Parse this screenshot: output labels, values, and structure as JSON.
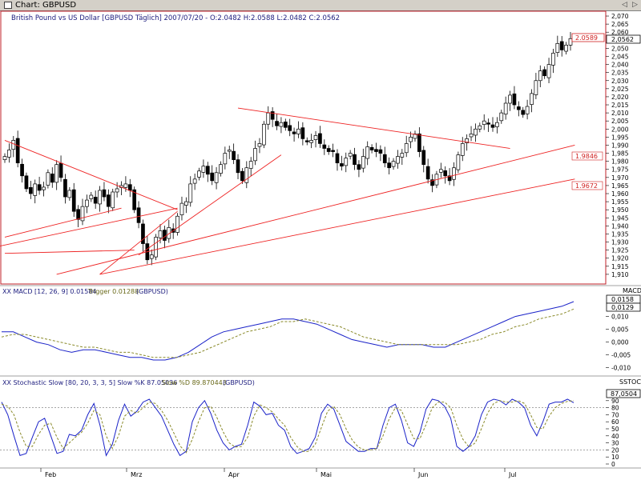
{
  "window": {
    "title": "Chart: GBPUSD",
    "btn_left": "◁",
    "btn_right": "▷"
  },
  "colors": {
    "price_panel_border": "#c0202a",
    "trendline": "#ee2222",
    "macd_line": "#1a22c8",
    "trigger_line": "#8a8a2a",
    "stoch_k": "#1a22c8",
    "stoch_d": "#8a8a2a",
    "label_red": "#d02020"
  },
  "price_panel": {
    "header_prefix": "British Pound vs US Dollar [GBPUSD  Täglich] 2007/07/20 - O:2.0482 H:2.0588 L:2.0482 C:2.0562",
    "label_last": "2.0589",
    "label_close": "2,0562",
    "label_trend1": "1.9846",
    "label_trend2": "1.9672",
    "y_ticks": [
      "2,070",
      "2,065",
      "2,060",
      "2,050",
      "2,045",
      "2,040",
      "2,035",
      "2,030",
      "2,025",
      "2,020",
      "2,015",
      "2,010",
      "2,005",
      "2,000",
      "1,995",
      "1,990",
      "1,985",
      "1,980",
      "1,975",
      "1,970",
      "1,965",
      "1,960",
      "1,955",
      "1,950",
      "1,945",
      "1,940",
      "1,935",
      "1,930",
      "1,925",
      "1,920",
      "1,915",
      "1,910"
    ]
  },
  "macd_panel": {
    "indicator_title": "XX MACD [12, 26, 9] 0.01584",
    "trigger_label": "Trigger 0.01288",
    "symbol": "(GBPUSD)",
    "axis_title": "MACD",
    "value_macd": "0,0158",
    "value_trigger": "0,0129",
    "y_ticks": [
      "0,010",
      "0,005",
      "0,000",
      "-0,005",
      "-0,010"
    ]
  },
  "stoch_panel": {
    "indicator_title": "XX Stochastic Slow [80, 20, 3, 3, 5] Slow %K 87.05036",
    "d_label": "Slow %D 89.870443",
    "symbol": "(GBPUSD)",
    "axis_title": "SSTOC",
    "value_k": "87,0504",
    "y_ticks": [
      "90",
      "80",
      "70",
      "60",
      "50",
      "40",
      "30",
      "20",
      "10",
      "0"
    ]
  },
  "x_axis": {
    "months": [
      "Feb",
      "Mrz",
      "Apr",
      "Mai",
      "Jun",
      "Jul"
    ]
  },
  "chart_data": [
    {
      "type": "candlestick",
      "title": "British Pound vs US Dollar [GBPUSD  Täglich] 2007/07/20 - O:2.0482 H:2.0588 L:2.0482 C:2.0562",
      "ylim": [
        1.905,
        2.072
      ],
      "series_close": [
        1.983,
        1.987,
        1.993,
        1.979,
        1.971,
        1.963,
        1.96,
        1.966,
        1.962,
        1.964,
        1.973,
        1.967,
        1.978,
        1.97,
        1.958,
        1.962,
        1.949,
        1.944,
        1.952,
        1.956,
        1.959,
        1.954,
        1.962,
        1.958,
        1.952,
        1.961,
        1.963,
        1.965,
        1.966,
        1.962,
        1.95,
        1.942,
        1.929,
        1.919,
        1.922,
        1.933,
        1.937,
        1.931,
        1.939,
        1.936,
        1.946,
        1.954,
        1.955,
        1.966,
        1.969,
        1.974,
        1.977,
        1.972,
        1.968,
        1.973,
        1.978,
        1.985,
        1.987,
        1.981,
        1.973,
        1.968,
        1.976,
        1.98,
        1.988,
        1.991,
        2.003,
        2.01,
        2.006,
        2.002,
        2.004,
        2.001,
        1.999,
        1.997,
        2.0,
        1.994,
        1.992,
        1.993,
        1.996,
        1.991,
        1.988,
        1.986,
        1.986,
        1.979,
        1.977,
        1.982,
        1.985,
        1.978,
        1.975,
        1.983,
        1.989,
        1.987,
        1.986,
        1.985,
        1.979,
        1.976,
        1.98,
        1.983,
        1.985,
        1.991,
        1.995,
        1.997,
        1.986,
        1.978,
        1.969,
        1.965,
        1.972,
        1.975,
        1.971,
        1.968,
        1.976,
        1.984,
        1.991,
        1.994,
        1.997,
        2.0,
        2.002,
        2.005,
        2.003,
        2.001,
        2.004,
        2.01,
        2.016,
        2.021,
        2.015,
        2.012,
        2.009,
        2.014,
        2.022,
        2.03,
        2.036,
        2.033,
        2.04,
        2.047,
        2.053,
        2.049,
        2.052,
        2.056
      ],
      "x_ticks": [
        "Feb",
        "Mrz",
        "Apr",
        "Mai",
        "Jun",
        "Jul"
      ],
      "annotations": [
        "2.0589",
        "2,0562",
        "1.9846",
        "1.9672"
      ]
    },
    {
      "type": "line",
      "title": "XX MACD [12, 26, 9] 0.01584",
      "ylim": [
        -0.012,
        0.018
      ],
      "series": [
        {
          "name": "MACD",
          "values": [
            0.004,
            0.004,
            0.002,
            0.0,
            -0.001,
            -0.003,
            -0.004,
            -0.003,
            -0.003,
            -0.004,
            -0.005,
            -0.006,
            -0.006,
            -0.007,
            -0.007,
            -0.006,
            -0.004,
            -0.001,
            0.002,
            0.004,
            0.005,
            0.006,
            0.007,
            0.008,
            0.009,
            0.009,
            0.008,
            0.007,
            0.005,
            0.003,
            0.001,
            0.0,
            -0.001,
            -0.002,
            -0.001,
            -0.001,
            -0.001,
            -0.002,
            -0.002,
            0.0,
            0.002,
            0.004,
            0.006,
            0.008,
            0.01,
            0.011,
            0.012,
            0.013,
            0.014,
            0.0158
          ]
        },
        {
          "name": "Trigger 0.01288",
          "values": [
            0.002,
            0.003,
            0.003,
            0.002,
            0.001,
            0.0,
            -0.001,
            -0.002,
            -0.002,
            -0.003,
            -0.004,
            -0.004,
            -0.005,
            -0.006,
            -0.006,
            -0.006,
            -0.005,
            -0.004,
            -0.002,
            0.0,
            0.002,
            0.004,
            0.005,
            0.006,
            0.008,
            0.008,
            0.009,
            0.008,
            0.007,
            0.006,
            0.004,
            0.002,
            0.001,
            0.0,
            -0.001,
            -0.001,
            -0.001,
            -0.001,
            -0.001,
            -0.001,
            0.0,
            0.001,
            0.003,
            0.004,
            0.006,
            0.007,
            0.009,
            0.01,
            0.011,
            0.0129
          ]
        }
      ],
      "y_ticks": [
        "0,010",
        "0,005",
        "0,000",
        "-0,005",
        "-0,010"
      ]
    },
    {
      "type": "line",
      "title": "XX Stochastic Slow [80, 20, 3, 3, 5] Slow %K 87.05036",
      "ylim": [
        0,
        100
      ],
      "series": [
        {
          "name": "Slow %K",
          "values": [
            88,
            70,
            40,
            12,
            15,
            38,
            60,
            65,
            40,
            15,
            18,
            42,
            40,
            48,
            70,
            86,
            55,
            12,
            28,
            62,
            85,
            68,
            75,
            88,
            92,
            80,
            68,
            48,
            28,
            12,
            18,
            60,
            80,
            90,
            72,
            48,
            30,
            20,
            25,
            28,
            55,
            88,
            82,
            70,
            72,
            55,
            48,
            25,
            15,
            18,
            22,
            38,
            72,
            85,
            78,
            55,
            32,
            25,
            18,
            18,
            22,
            22,
            55,
            80,
            85,
            62,
            30,
            25,
            45,
            78,
            92,
            90,
            82,
            65,
            25,
            18,
            25,
            40,
            70,
            88,
            92,
            90,
            84,
            92,
            88,
            80,
            55,
            40,
            60,
            85,
            88,
            88,
            92,
            87
          ]
        },
        {
          "name": "Slow %D 89.870443",
          "values": [
            85,
            82,
            70,
            45,
            25,
            25,
            42,
            55,
            58,
            38,
            22,
            30,
            38,
            45,
            58,
            76,
            70,
            40,
            22,
            40,
            68,
            76,
            72,
            80,
            88,
            86,
            76,
            62,
            44,
            26,
            16,
            35,
            60,
            80,
            82,
            66,
            46,
            30,
            24,
            25,
            38,
            68,
            84,
            80,
            74,
            64,
            55,
            38,
            25,
            18,
            18,
            28,
            52,
            75,
            82,
            70,
            50,
            34,
            24,
            20,
            20,
            22,
            40,
            64,
            80,
            76,
            56,
            36,
            36,
            56,
            80,
            88,
            88,
            80,
            55,
            35,
            24,
            30,
            50,
            72,
            86,
            90,
            88,
            88,
            90,
            86,
            70,
            52,
            50,
            68,
            80,
            86,
            89,
            89.87
          ]
        }
      ],
      "y_ticks": [
        "90",
        "80",
        "70",
        "60",
        "50",
        "40",
        "30",
        "20",
        "10",
        "0"
      ]
    }
  ]
}
